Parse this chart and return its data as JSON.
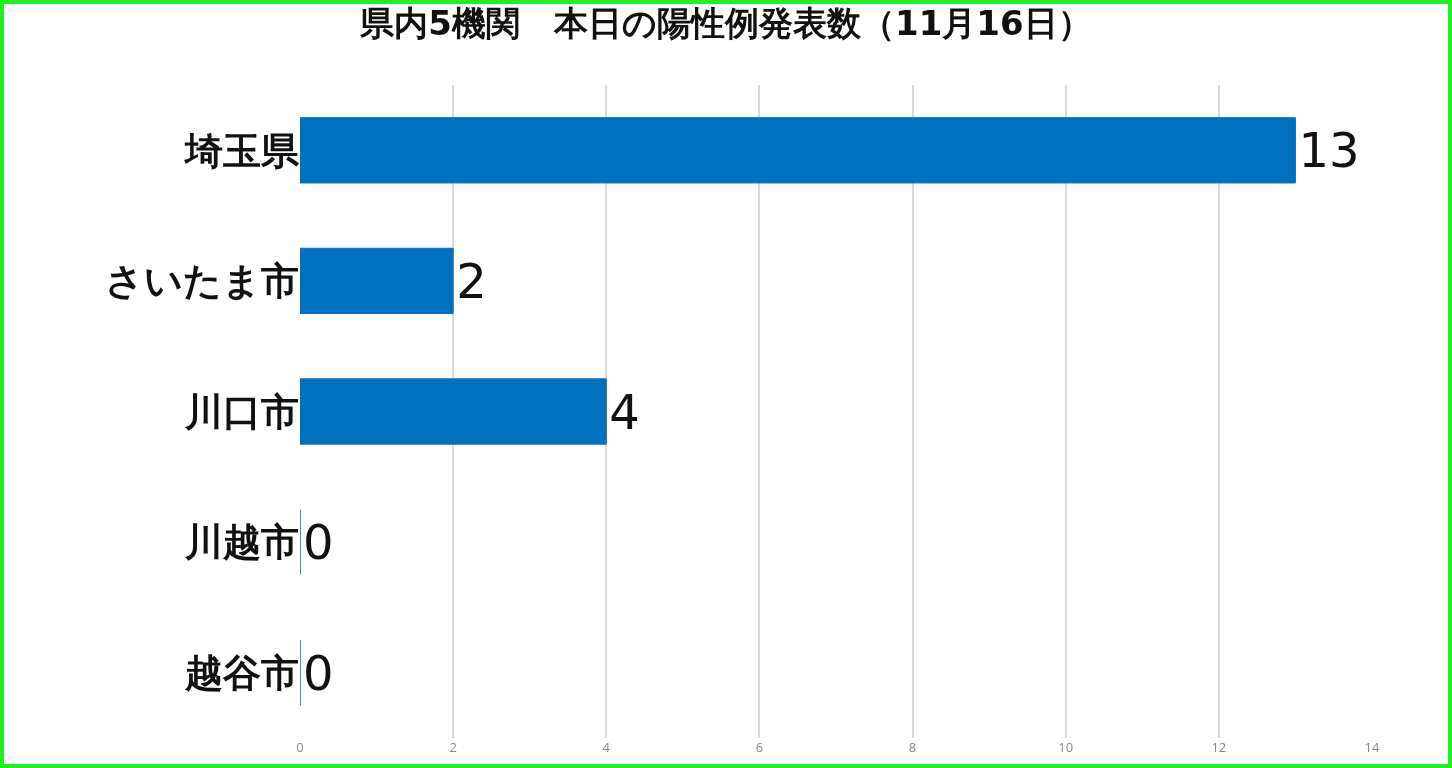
{
  "chart_data": {
    "type": "bar",
    "orientation": "horizontal",
    "title": "県内5機関　本日の陽性例発表数（11月16日）",
    "categories": [
      "埼玉県",
      "さいたま市",
      "川口市",
      "川越市",
      "越谷市"
    ],
    "values": [
      13,
      2,
      4,
      0,
      0
    ],
    "color": "#0070c0",
    "data_labels": true,
    "xlim": [
      0,
      14
    ],
    "xticks": [
      0,
      2,
      4,
      6,
      8,
      10,
      12,
      14
    ],
    "grid": "x",
    "legend": false
  }
}
